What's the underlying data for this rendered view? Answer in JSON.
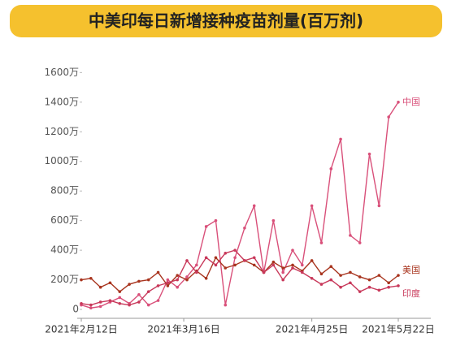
{
  "chart_data": {
    "type": "line",
    "title": "中美印每日新增接种疫苗剂量(百万剂)",
    "x": [
      "2021-02-12",
      "2021-02-15",
      "2021-02-18",
      "2021-02-21",
      "2021-02-24",
      "2021-02-27",
      "2021-03-02",
      "2021-03-05",
      "2021-03-08",
      "2021-03-11",
      "2021-03-14",
      "2021-03-17",
      "2021-03-20",
      "2021-03-23",
      "2021-03-26",
      "2021-03-29",
      "2021-04-01",
      "2021-04-04",
      "2021-04-07",
      "2021-04-10",
      "2021-04-13",
      "2021-04-16",
      "2021-04-19",
      "2021-04-22",
      "2021-04-25",
      "2021-04-28",
      "2021-05-01",
      "2021-05-04",
      "2021-05-07",
      "2021-05-10",
      "2021-05-13",
      "2021-05-16",
      "2021-05-19",
      "2021-05-22"
    ],
    "series": [
      {
        "name": "中国",
        "color": "#d9507a",
        "values": [
          30,
          10,
          20,
          50,
          80,
          40,
          100,
          30,
          60,
          200,
          150,
          220,
          300,
          560,
          600,
          30,
          350,
          550,
          700,
          250,
          600,
          250,
          400,
          300,
          700,
          450,
          950,
          1150,
          500,
          450,
          1050,
          700,
          1300,
          1400
        ]
      },
      {
        "name": "美国",
        "color": "#a8341e",
        "values": [
          200,
          210,
          150,
          180,
          120,
          170,
          190,
          200,
          250,
          160,
          230,
          200,
          260,
          210,
          350,
          280,
          300,
          330,
          300,
          250,
          320,
          280,
          300,
          260,
          330,
          240,
          290,
          230,
          250,
          220,
          200,
          230,
          180,
          230
        ]
      },
      {
        "name": "印度",
        "color": "#c8385a",
        "values": [
          40,
          30,
          50,
          60,
          40,
          30,
          50,
          120,
          160,
          180,
          200,
          330,
          250,
          350,
          300,
          380,
          400,
          330,
          350,
          250,
          300,
          200,
          280,
          250,
          210,
          170,
          200,
          150,
          180,
          120,
          150,
          130,
          150,
          160
        ]
      }
    ],
    "xlim": [
      "2021-02-12",
      "2021-05-22"
    ],
    "xticks": [
      {
        "value": "2021-02-12",
        "label": "2021年2月12日"
      },
      {
        "value": "2021-03-16",
        "label": "2021年3月16日"
      },
      {
        "value": "2021-04-25",
        "label": "2021年4月25日"
      },
      {
        "value": "2021-05-22",
        "label": "2021年5月22日"
      }
    ],
    "ylim": [
      -60,
      1750
    ],
    "yticks": [
      0,
      {
        "value": 200,
        "label": "200万"
      },
      {
        "value": 400,
        "label": "400万"
      },
      {
        "value": 600,
        "label": "600万"
      },
      {
        "value": 800,
        "label": "800万"
      },
      {
        "value": 1000,
        "label": "1000万"
      },
      {
        "value": 1200,
        "label": "1200万"
      },
      {
        "value": 1400,
        "label": "1400万"
      },
      {
        "value": 1600,
        "label": "1600万"
      }
    ]
  }
}
